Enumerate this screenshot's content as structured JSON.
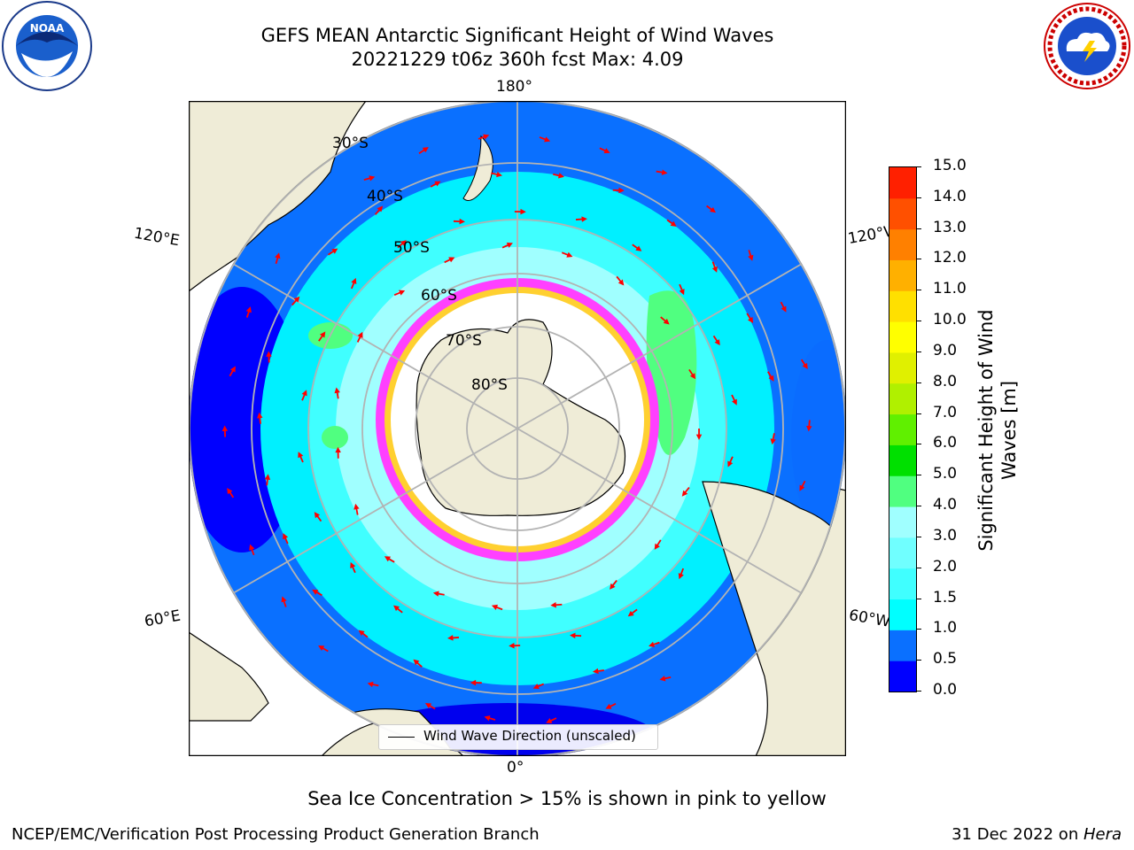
{
  "title": {
    "line1": "GEFS MEAN Antarctic Significant Height of Wind Waves",
    "line2": "20221229 t06z 360h fcst   Max: 4.09"
  },
  "map": {
    "projection": "south-polar-stereographic",
    "longitude_labels": {
      "top": "180°",
      "bottom": "0°",
      "upper_left": "120°E",
      "upper_right": "120°W",
      "lower_left": "60°E",
      "lower_right": "60°W"
    },
    "latitude_labels": [
      "30°S",
      "40°S",
      "50°S",
      "60°S",
      "70°S",
      "80°S"
    ],
    "colors": {
      "land": "#efecd7",
      "ocean_low": "#0000ff",
      "ocean_mid": "#0a70ff",
      "ocean_cyan": "#00f0ff",
      "ocean_lightcyan": "#a0ffff",
      "ocean_green": "#50ff80",
      "ice_pink": "#ff40ff",
      "ice_yellow": "#ffd030",
      "arrows": "#ff0000",
      "grid": "#b3b3b3"
    },
    "legend_label": "Wind Wave Direction (unscaled)"
  },
  "colorbar": {
    "label": "Significant Height of Wind Waves [m]",
    "label_line1": "Significant Height of Wind",
    "label_line2": "Waves [m]",
    "ticks": [
      "0.0",
      "0.5",
      "1.0",
      "1.5",
      "2.0",
      "3.0",
      "4.0",
      "5.0",
      "6.0",
      "7.0",
      "8.0",
      "9.0",
      "10.0",
      "11.0",
      "12.0",
      "13.0",
      "14.0",
      "15.0"
    ],
    "colors": [
      "#0000ff",
      "#0a70ff",
      "#00ffff",
      "#40ffff",
      "#70ffff",
      "#a0ffff",
      "#50ff80",
      "#00e000",
      "#60f000",
      "#b0f000",
      "#e0f000",
      "#ffff00",
      "#ffe000",
      "#ffb000",
      "#ff8000",
      "#ff5000",
      "#ff2000"
    ]
  },
  "note": "Sea Ice Concentration > 15% is shown in pink to yellow",
  "footer": {
    "left": "NCEP/EMC/Verification Post Processing Product Generation Branch",
    "right_prefix": "31 Dec 2022 on ",
    "right_host": "Hera"
  },
  "logos": {
    "left": "noaa-logo",
    "right": "nws-logo"
  }
}
